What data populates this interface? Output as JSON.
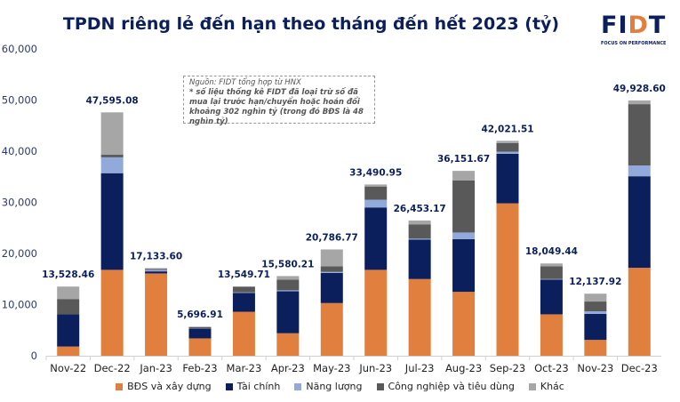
{
  "chart_data": {
    "type": "bar",
    "stacked": true,
    "title": "TPDN riêng lẻ đến hạn theo tháng đến hết 2023 (tỷ)",
    "categories": [
      "Nov-22",
      "Dec-22",
      "Jan-23",
      "Feb-23",
      "Mar-23",
      "Apr-23",
      "May-23",
      "Jun-23",
      "Jul-23",
      "Aug-23",
      "Sep-23",
      "Oct-23",
      "Nov-23",
      "Dec-23"
    ],
    "totals": [
      "13,528.46",
      "47,595.08",
      "17,133.60",
      "5,696.91",
      "13,549.71",
      "15,580.21",
      "20,786.77",
      "33,490.95",
      "26,453.17",
      "36,151.67",
      "42,021.51",
      "18,049.44",
      "12,137.92",
      "49,928.60"
    ],
    "series": [
      {
        "name": "BĐS và xây dựng",
        "color": "#e07f3e",
        "values": [
          1800,
          16800,
          16100,
          3400,
          8600,
          4400,
          10300,
          16800,
          15000,
          12500,
          29800,
          8100,
          3100,
          17200
        ]
      },
      {
        "name": "Tài chính",
        "color": "#0b1f5c",
        "values": [
          6300,
          18900,
          400,
          1900,
          3700,
          8200,
          5900,
          12200,
          7700,
          10300,
          9700,
          6800,
          5100,
          17900
        ]
      },
      {
        "name": "Năng lượng",
        "color": "#92a9db",
        "values": [
          0,
          3100,
          300,
          50,
          100,
          200,
          200,
          1500,
          200,
          1300,
          400,
          100,
          500,
          2100
        ]
      },
      {
        "name": "Công nghiệp và tiêu dùng",
        "color": "#595959",
        "values": [
          3000,
          500,
          200,
          250,
          1100,
          2100,
          1100,
          2600,
          2800,
          10200,
          1700,
          2500,
          1900,
          12000
        ]
      },
      {
        "name": "Khác",
        "color": "#a6a6a6",
        "values": [
          2428,
          8295,
          134,
          97,
          50,
          680,
          3287,
          391,
          753,
          1852,
          422,
          549,
          1538,
          729
        ]
      }
    ],
    "yticks": [
      "0",
      "10,000",
      "20,000",
      "30,000",
      "40,000",
      "50,000",
      "60,000"
    ],
    "ylim": [
      0,
      60000
    ],
    "grid": false,
    "legend": "bottom"
  },
  "note": {
    "source": "Nguồn: FIDT tổng hợp từ HNX",
    "remark": "* số liệu thống kê FIDT đã loại trừ số đã mua lại trước hạn/chuyển hoặc hoán đổi khoảng 302 nghìn tỷ (trong đó BĐS là 48 nghìn tỷ)"
  },
  "logo": {
    "text": "FIDT",
    "tagline": "FOCUS ON PERFORMANCE"
  }
}
